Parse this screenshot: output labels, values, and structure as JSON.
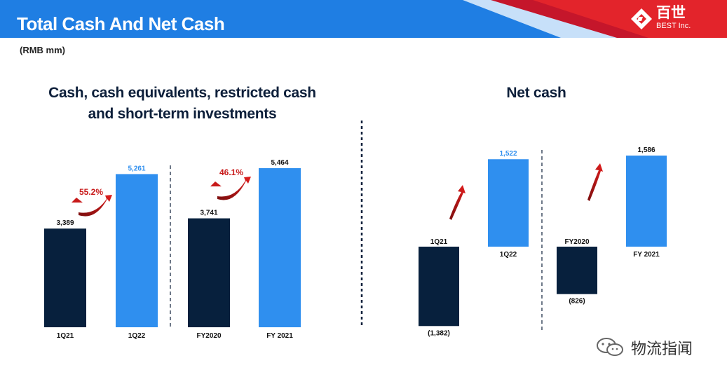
{
  "header": {
    "title": "Total Cash And Net Cash"
  },
  "logo": {
    "name": "百世",
    "sub": "BEST Inc.",
    "icon": "best-logo-icon"
  },
  "unit_label": "(RMB mm)",
  "chart_data": [
    {
      "type": "bar",
      "title": "Cash, cash equivalents, restricted cash and short-term investments",
      "title_lines": [
        "Cash, cash equivalents, restricted cash",
        "and short-term investments"
      ],
      "categories": [
        "1Q21",
        "1Q22",
        "FY2020",
        "FY 2021"
      ],
      "values": [
        3389,
        5261,
        3741,
        5464
      ],
      "value_labels": [
        "3,389",
        "5,261",
        "3,741",
        "5,464"
      ],
      "colors": [
        "#07203d",
        "#2f8fef",
        "#07203d",
        "#2f8fef"
      ],
      "label_colors": [
        "#111111",
        "#2f8fef",
        "#111111",
        "#111111"
      ],
      "growth_annotations": [
        {
          "text": "55.2%",
          "between": [
            "1Q21",
            "1Q22"
          ]
        },
        {
          "text": "46.1%",
          "between": [
            "FY2020",
            "FY 2021"
          ]
        }
      ]
    },
    {
      "type": "bar",
      "title": "Net cash",
      "categories": [
        "1Q21",
        "1Q22",
        "FY2020",
        "FY 2021"
      ],
      "values": [
        -1382,
        1522,
        -826,
        1586
      ],
      "value_labels": [
        "(1,382)",
        "1,522",
        "(826)",
        "1,586"
      ],
      "colors": [
        "#07203d",
        "#2f8fef",
        "#07203d",
        "#2f8fef"
      ],
      "label_colors": [
        "#111111",
        "#2f8fef",
        "#111111",
        "#111111"
      ]
    }
  ],
  "accent_colors": {
    "header_blue": "#1f7ee3",
    "arrow_red": "#c81a1a",
    "dark_bar": "#07203d",
    "light_bar": "#2f8fef"
  },
  "watermark": {
    "text": "物流指闻",
    "icon": "wechat-icon"
  }
}
